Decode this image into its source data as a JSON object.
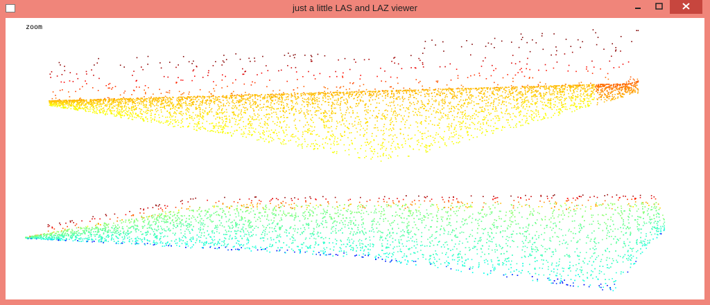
{
  "window": {
    "title": "just a little LAS and LAZ viewer"
  },
  "viewer": {
    "label": "zoom"
  }
}
